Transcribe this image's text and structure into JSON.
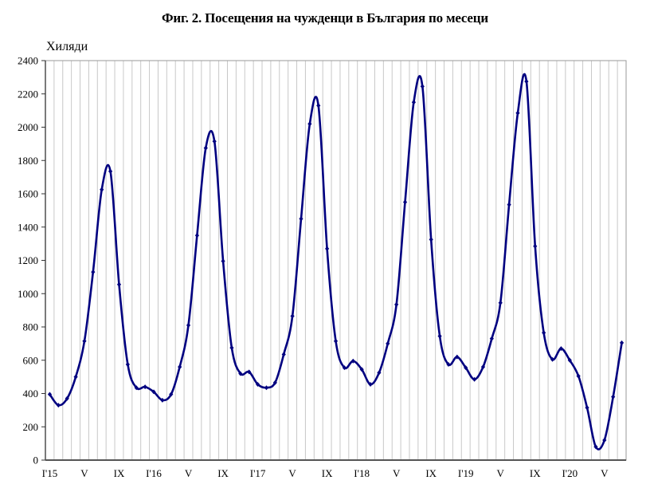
{
  "title": "Фиг. 2. Посещения на чужденци в България по месеци",
  "y_unit_label": "Хиляди",
  "colors": {
    "line": "#000080",
    "grid": "#c8c8c8",
    "axis": "#555555"
  },
  "chart_data": {
    "type": "line",
    "title": "Фиг. 2. Посещения на чужденци в България по месеци",
    "xlabel": "",
    "ylabel": "Хиляди",
    "ylim": [
      0,
      2400
    ],
    "yticks": [
      0,
      200,
      400,
      600,
      800,
      1000,
      1200,
      1400,
      1600,
      1800,
      2000,
      2200,
      2400
    ],
    "grid": {
      "vertical": true,
      "horizontal": false
    },
    "x_tick_labels": [
      {
        "index": 0,
        "label": "I'15"
      },
      {
        "index": 4,
        "label": "V"
      },
      {
        "index": 8,
        "label": "IX"
      },
      {
        "index": 12,
        "label": "I'16"
      },
      {
        "index": 16,
        "label": "V"
      },
      {
        "index": 20,
        "label": "IX"
      },
      {
        "index": 24,
        "label": "I'17"
      },
      {
        "index": 28,
        "label": "V"
      },
      {
        "index": 32,
        "label": "IX"
      },
      {
        "index": 36,
        "label": "I'18"
      },
      {
        "index": 40,
        "label": "V"
      },
      {
        "index": 44,
        "label": "IX"
      },
      {
        "index": 48,
        "label": "I'19"
      },
      {
        "index": 52,
        "label": "V"
      },
      {
        "index": 56,
        "label": "IX"
      },
      {
        "index": 60,
        "label": "I'20"
      },
      {
        "index": 64,
        "label": "V"
      }
    ],
    "categories": [
      "2015-01",
      "2015-02",
      "2015-03",
      "2015-04",
      "2015-05",
      "2015-06",
      "2015-07",
      "2015-08",
      "2015-09",
      "2015-10",
      "2015-11",
      "2015-12",
      "2016-01",
      "2016-02",
      "2016-03",
      "2016-04",
      "2016-05",
      "2016-06",
      "2016-07",
      "2016-08",
      "2016-09",
      "2016-10",
      "2016-11",
      "2016-12",
      "2017-01",
      "2017-02",
      "2017-03",
      "2017-04",
      "2017-05",
      "2017-06",
      "2017-07",
      "2017-08",
      "2017-09",
      "2017-10",
      "2017-11",
      "2017-12",
      "2018-01",
      "2018-02",
      "2018-03",
      "2018-04",
      "2018-05",
      "2018-06",
      "2018-07",
      "2018-08",
      "2018-09",
      "2018-10",
      "2018-11",
      "2018-12",
      "2019-01",
      "2019-02",
      "2019-03",
      "2019-04",
      "2019-05",
      "2019-06",
      "2019-07",
      "2019-08",
      "2019-09",
      "2019-10",
      "2019-11",
      "2019-12",
      "2020-01",
      "2020-02",
      "2020-03",
      "2020-04",
      "2020-05",
      "2020-06",
      "2020-07"
    ],
    "series": [
      {
        "name": "Посещения на чужденци (хиляди)",
        "values": [
          395,
          330,
          370,
          500,
          715,
          1130,
          1625,
          1735,
          1055,
          575,
          435,
          440,
          410,
          360,
          395,
          560,
          810,
          1350,
          1875,
          1915,
          1195,
          675,
          520,
          530,
          455,
          435,
          465,
          635,
          865,
          1450,
          2020,
          2130,
          1270,
          715,
          555,
          595,
          545,
          455,
          525,
          700,
          935,
          1550,
          2150,
          2245,
          1325,
          745,
          575,
          620,
          555,
          485,
          560,
          730,
          945,
          1535,
          2085,
          2275,
          1285,
          765,
          605,
          670,
          600,
          505,
          315,
          80,
          120,
          380,
          705
        ]
      }
    ]
  }
}
